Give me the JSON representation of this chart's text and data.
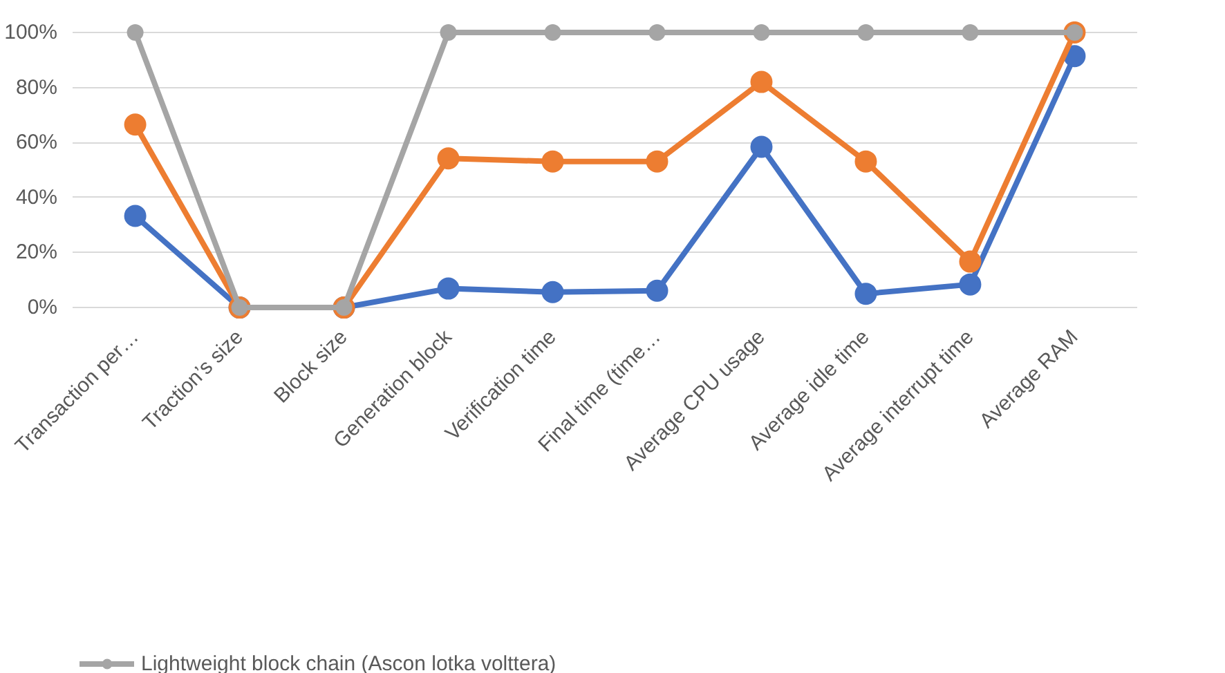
{
  "chart_data": {
    "type": "line",
    "categories": [
      "Transaction per…",
      "Traction’s size",
      "Block size",
      "Generation block",
      "Verification time",
      "Final time (time…",
      "Average CPU usage",
      "Average idle time",
      "Average interrupt time",
      "Average RAM"
    ],
    "series": [
      {
        "color": "#4472c4",
        "values": [
          33.3,
          0,
          0,
          6.9,
          5.6,
          6.1,
          58.4,
          5,
          8.4,
          91.4
        ]
      },
      {
        "color": "#ed7d31",
        "values": [
          66.5,
          0,
          0,
          54.2,
          53.1,
          53.1,
          82,
          53.1,
          16.7,
          100
        ]
      },
      {
        "name": "Lightweight block chain (Ascon lotka volttera)",
        "color": "#a5a5a5",
        "values": [
          100,
          0,
          0,
          100,
          100,
          100,
          100,
          100,
          100,
          100
        ]
      }
    ],
    "ylim": [
      0,
      100
    ],
    "yticks": [
      {
        "value": 0,
        "label": "0%"
      },
      {
        "value": 20,
        "label": "20%"
      },
      {
        "value": 40,
        "label": "40%"
      },
      {
        "value": 60,
        "label": "60%"
      },
      {
        "value": 80,
        "label": "80%"
      },
      {
        "value": 100,
        "label": "100%"
      }
    ],
    "grid": "y",
    "marker": "circle",
    "line_style": "solid",
    "legend": "bottom left"
  }
}
